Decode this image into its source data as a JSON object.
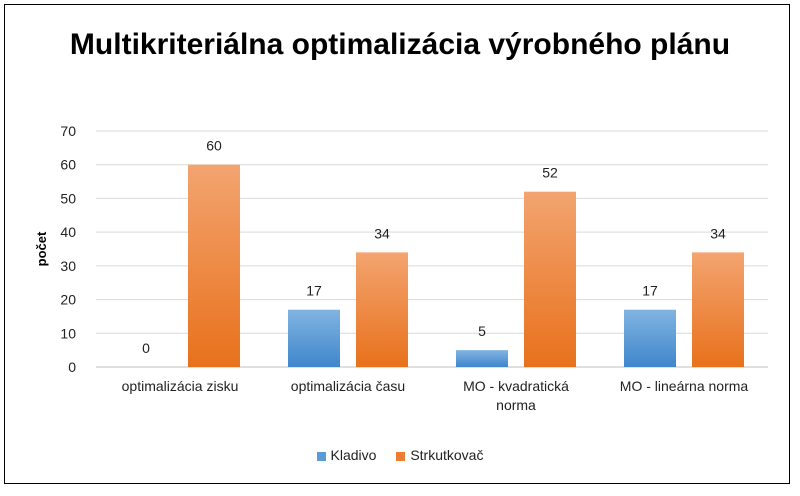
{
  "chart_data": {
    "type": "bar",
    "title": "Multikriteriálna optimalizácia výrobného plánu",
    "ylabel": "počet",
    "xlabel": "",
    "categories": [
      [
        "optimalizácia zisku"
      ],
      [
        "optimalizácia času"
      ],
      [
        "MO - kvadratická",
        "norma"
      ],
      [
        "MO - lineárna norma"
      ]
    ],
    "series": [
      {
        "name": "Kladivo",
        "values": [
          0,
          17,
          5,
          17
        ],
        "color": "#5b9bd5"
      },
      {
        "name": "Strkutkovač",
        "values": [
          60,
          34,
          52,
          34
        ],
        "color": "#ed7d31"
      }
    ],
    "ylim": [
      0,
      70
    ],
    "yticks": [
      0,
      10,
      20,
      30,
      40,
      50,
      60,
      70
    ],
    "grid": true,
    "legend": "bottom"
  }
}
